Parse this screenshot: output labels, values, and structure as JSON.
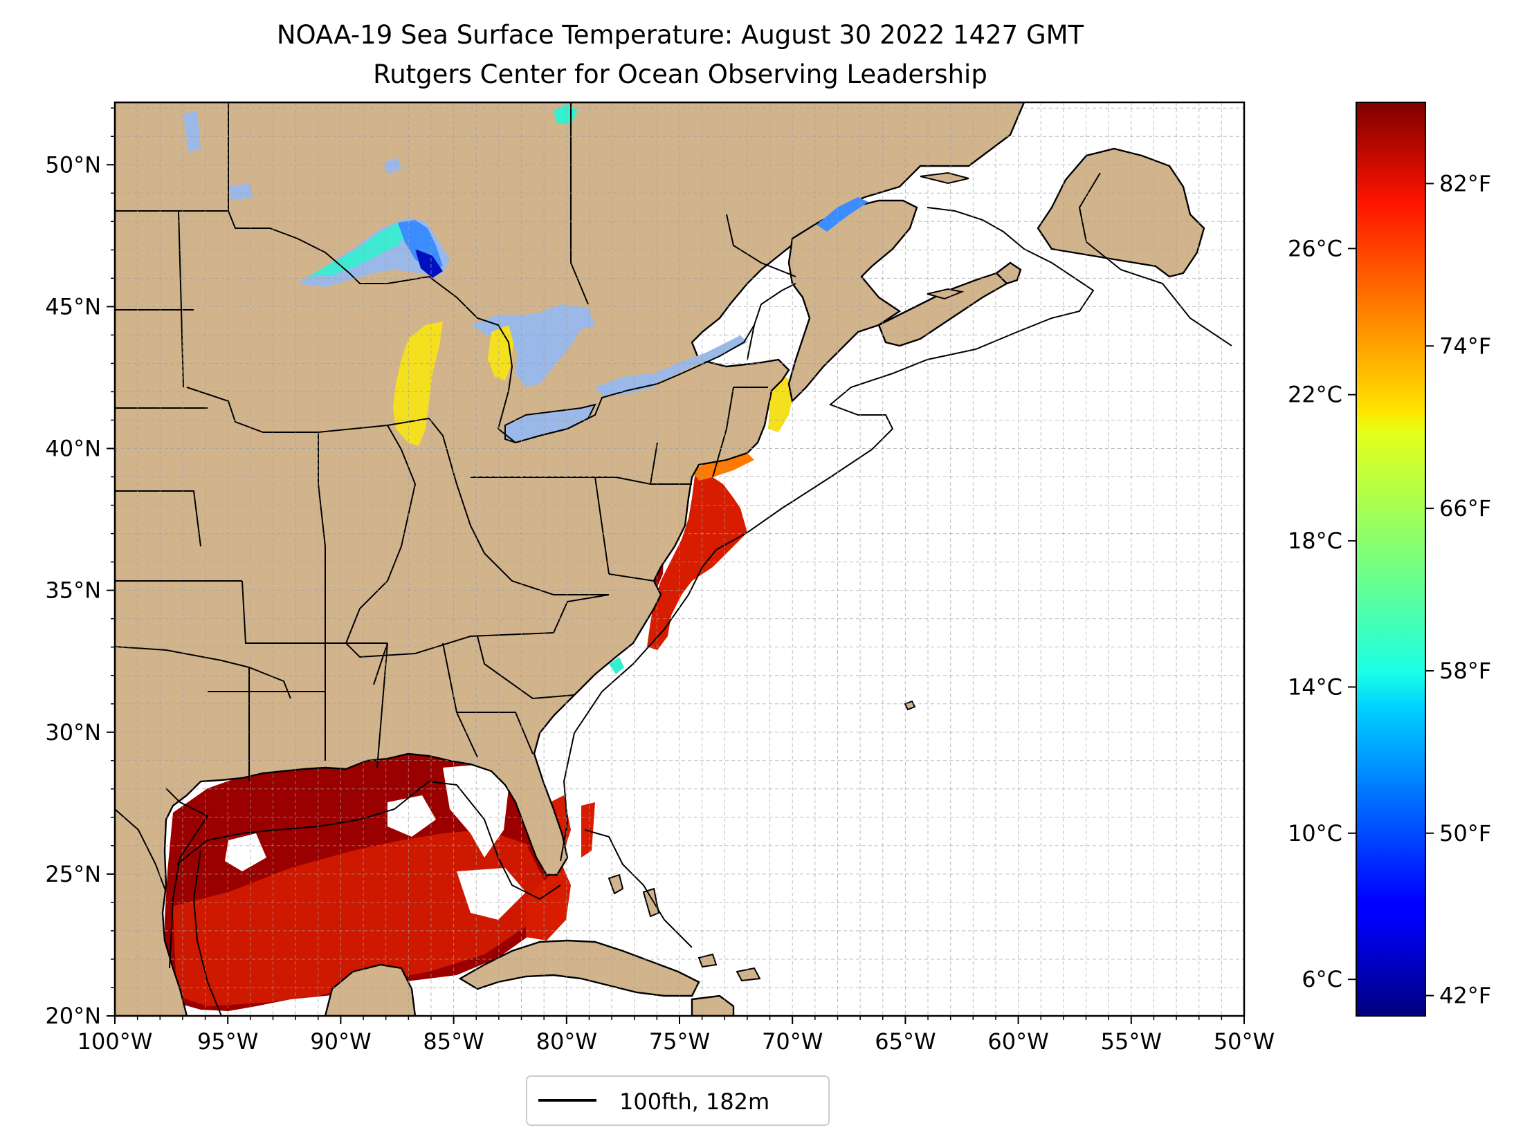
{
  "title": {
    "line1": "NOAA-19 Sea Surface Temperature: August 30 2022 1427 GMT",
    "line2": "Rutgers Center for Ocean Observing Leadership"
  },
  "map": {
    "lon_range": [
      -100,
      -50
    ],
    "lat_range": [
      20,
      52.2
    ],
    "gridlines": true,
    "land_color": "#d2b48c",
    "lake_color": "#9ab8e8",
    "ocean_no_data_color": "#ffffff",
    "lon_ticks": [
      {
        "value": -100,
        "label": "100°W"
      },
      {
        "value": -95,
        "label": "95°W"
      },
      {
        "value": -90,
        "label": "90°W"
      },
      {
        "value": -85,
        "label": "85°W"
      },
      {
        "value": -80,
        "label": "80°W"
      },
      {
        "value": -75,
        "label": "75°W"
      },
      {
        "value": -70,
        "label": "70°W"
      },
      {
        "value": -65,
        "label": "65°W"
      },
      {
        "value": -60,
        "label": "60°W"
      },
      {
        "value": -55,
        "label": "55°W"
      },
      {
        "value": -50,
        "label": "50°W"
      }
    ],
    "lat_ticks": [
      {
        "value": 20,
        "label": "20°N"
      },
      {
        "value": 25,
        "label": "25°N"
      },
      {
        "value": 30,
        "label": "30°N"
      },
      {
        "value": 35,
        "label": "35°N"
      },
      {
        "value": 40,
        "label": "40°N"
      },
      {
        "value": 45,
        "label": "45°N"
      },
      {
        "value": 50,
        "label": "50°N"
      }
    ]
  },
  "legend": {
    "location": "below-map",
    "entries": [
      {
        "label": "100fth, 182m",
        "color": "#000000"
      }
    ]
  },
  "colorbar": {
    "colormap": "jet",
    "range_c": [
      5,
      30
    ],
    "celsius_ticks": [
      {
        "value": 6,
        "label": "6°C"
      },
      {
        "value": 10,
        "label": "10°C"
      },
      {
        "value": 14,
        "label": "14°C"
      },
      {
        "value": 18,
        "label": "18°C"
      },
      {
        "value": 22,
        "label": "22°C"
      },
      {
        "value": 26,
        "label": "26°C"
      }
    ],
    "fahrenheit_ticks": [
      {
        "value_c": 5.556,
        "label": "42°F"
      },
      {
        "value_c": 10,
        "label": "50°F"
      },
      {
        "value_c": 14.444,
        "label": "58°F"
      },
      {
        "value_c": 18.889,
        "label": "66°F"
      },
      {
        "value_c": 23.333,
        "label": "74°F"
      },
      {
        "value_c": 27.778,
        "label": "82°F"
      }
    ]
  },
  "sst_colors": {
    "darkred": "#9b0000",
    "red": "#d81c00",
    "orange": "#ff7a00",
    "yellow": "#f5e020",
    "cyan": "#35f0d0",
    "blue": "#3a8cff",
    "navy": "#0010c0"
  }
}
